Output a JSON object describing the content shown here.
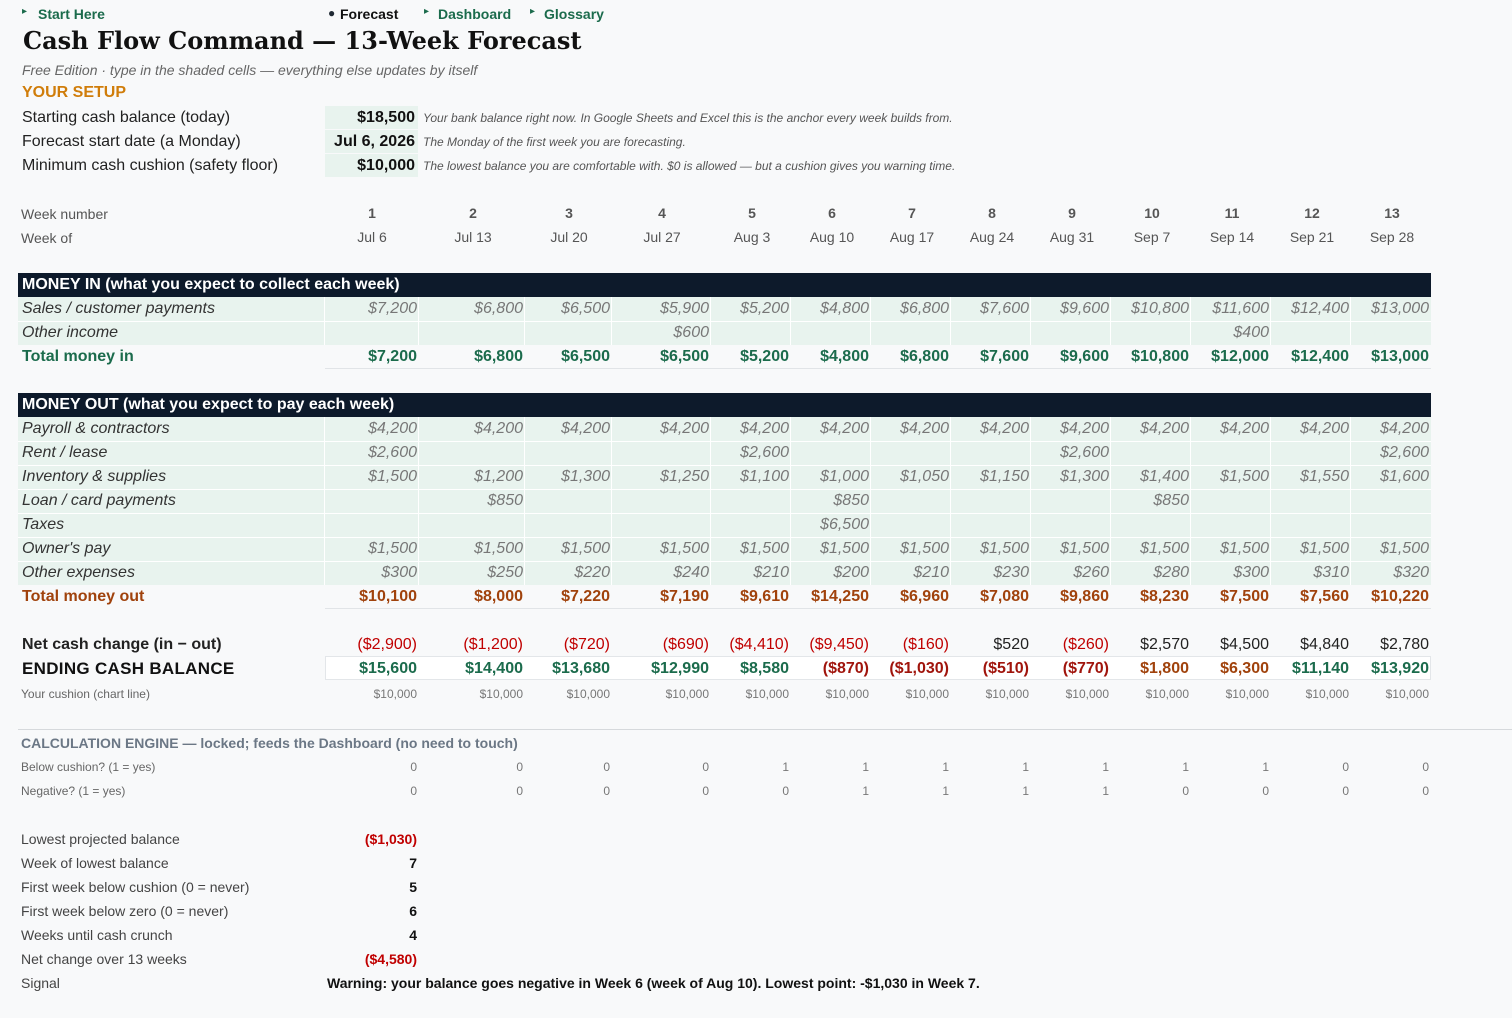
{
  "nav": {
    "start": "Start Here",
    "forecast": "Forecast",
    "dashboard": "Dashboard",
    "glossary": "Glossary"
  },
  "title": "Cash Flow Command — 13-Week Forecast",
  "subtitle": "Free Edition · type in the shaded cells — everything else updates by itself",
  "setup": {
    "heading": "YOUR SETUP",
    "rows": [
      {
        "label": "Starting cash balance (today)",
        "value": "$18,500",
        "note": "Your bank balance right now. In Google Sheets and Excel this is the anchor every week builds from."
      },
      {
        "label": "Forecast start date (a Monday)",
        "value": "Jul 6, 2026",
        "note": "The Monday of the first week you are forecasting."
      },
      {
        "label": "Minimum cash cushion (safety floor)",
        "value": "$10,000",
        "note": "The lowest balance you are comfortable with. $0 is allowed — but a cushion gives you warning time."
      }
    ]
  },
  "weeks": {
    "number_label": "Week number",
    "of_label": "Week of",
    "numbers": [
      "1",
      "2",
      "3",
      "4",
      "5",
      "6",
      "7",
      "8",
      "9",
      "10",
      "11",
      "12",
      "13"
    ],
    "dates": [
      "Jul 6",
      "Jul 13",
      "Jul 20",
      "Jul 27",
      "Aug 3",
      "Aug 10",
      "Aug 17",
      "Aug 24",
      "Aug 31",
      "Sep 7",
      "Sep 14",
      "Sep 21",
      "Sep 28"
    ]
  },
  "money_in": {
    "header": "MONEY IN  (what you expect to collect each week)",
    "rows": [
      {
        "label": "Sales / customer payments",
        "values": [
          "$7,200",
          "$6,800",
          "$6,500",
          "$5,900",
          "$5,200",
          "$4,800",
          "$6,800",
          "$7,600",
          "$9,600",
          "$10,800",
          "$11,600",
          "$12,400",
          "$13,000"
        ]
      },
      {
        "label": "Other income",
        "values": [
          "",
          "",
          "",
          "$600",
          "",
          "",
          "",
          "",
          "",
          "",
          "$400",
          "",
          ""
        ]
      }
    ],
    "total": {
      "label": "Total money in",
      "values": [
        "$7,200",
        "$6,800",
        "$6,500",
        "$6,500",
        "$5,200",
        "$4,800",
        "$6,800",
        "$7,600",
        "$9,600",
        "$10,800",
        "$12,000",
        "$12,400",
        "$13,000"
      ]
    }
  },
  "money_out": {
    "header": "MONEY OUT  (what you expect to pay each week)",
    "rows": [
      {
        "label": "Payroll & contractors",
        "values": [
          "$4,200",
          "$4,200",
          "$4,200",
          "$4,200",
          "$4,200",
          "$4,200",
          "$4,200",
          "$4,200",
          "$4,200",
          "$4,200",
          "$4,200",
          "$4,200",
          "$4,200"
        ]
      },
      {
        "label": "Rent / lease",
        "values": [
          "$2,600",
          "",
          "",
          "",
          "$2,600",
          "",
          "",
          "",
          "$2,600",
          "",
          "",
          "",
          "$2,600"
        ]
      },
      {
        "label": "Inventory & supplies",
        "values": [
          "$1,500",
          "$1,200",
          "$1,300",
          "$1,250",
          "$1,100",
          "$1,000",
          "$1,050",
          "$1,150",
          "$1,300",
          "$1,400",
          "$1,500",
          "$1,550",
          "$1,600"
        ]
      },
      {
        "label": "Loan / card payments",
        "values": [
          "",
          "$850",
          "",
          "",
          "",
          "$850",
          "",
          "",
          "",
          "$850",
          "",
          "",
          ""
        ]
      },
      {
        "label": "Taxes",
        "values": [
          "",
          "",
          "",
          "",
          "",
          "$6,500",
          "",
          "",
          "",
          "",
          "",
          "",
          ""
        ]
      },
      {
        "label": "Owner's pay",
        "values": [
          "$1,500",
          "$1,500",
          "$1,500",
          "$1,500",
          "$1,500",
          "$1,500",
          "$1,500",
          "$1,500",
          "$1,500",
          "$1,500",
          "$1,500",
          "$1,500",
          "$1,500"
        ]
      },
      {
        "label": "Other expenses",
        "values": [
          "$300",
          "$250",
          "$220",
          "$240",
          "$210",
          "$200",
          "$210",
          "$230",
          "$260",
          "$280",
          "$300",
          "$310",
          "$320"
        ]
      }
    ],
    "total": {
      "label": "Total money out",
      "values": [
        "$10,100",
        "$8,000",
        "$7,220",
        "$7,190",
        "$9,610",
        "$14,250",
        "$6,960",
        "$7,080",
        "$9,860",
        "$8,230",
        "$7,500",
        "$7,560",
        "$10,220"
      ]
    }
  },
  "net": {
    "label": "Net cash change (in − out)",
    "values": [
      "($2,900)",
      "($1,200)",
      "($720)",
      "($690)",
      "($4,410)",
      "($9,450)",
      "($160)",
      "$520",
      "($260)",
      "$2,570",
      "$4,500",
      "$4,840",
      "$2,780"
    ]
  },
  "ending": {
    "label": "ENDING CASH BALANCE",
    "values": [
      "$15,600",
      "$14,400",
      "$13,680",
      "$12,990",
      "$8,580",
      "($870)",
      "($1,030)",
      "($510)",
      "($770)",
      "$1,800",
      "$6,300",
      "$11,140",
      "$13,920"
    ]
  },
  "cushion": {
    "label": "Your cushion (chart line)",
    "values": [
      "$10,000",
      "$10,000",
      "$10,000",
      "$10,000",
      "$10,000",
      "$10,000",
      "$10,000",
      "$10,000",
      "$10,000",
      "$10,000",
      "$10,000",
      "$10,000",
      "$10,000"
    ]
  },
  "engine": {
    "heading": "CALCULATION ENGINE — locked; feeds the Dashboard (no need to touch)",
    "rows": [
      {
        "label": "Below cushion? (1 = yes)",
        "values": [
          "0",
          "0",
          "0",
          "0",
          "1",
          "1",
          "1",
          "1",
          "1",
          "1",
          "1",
          "0",
          "0"
        ]
      },
      {
        "label": "Negative? (1 = yes)",
        "values": [
          "0",
          "0",
          "0",
          "0",
          "0",
          "1",
          "1",
          "1",
          "1",
          "0",
          "0",
          "0",
          "0"
        ]
      }
    ]
  },
  "summary": [
    {
      "label": "Lowest projected balance",
      "value": "($1,030)"
    },
    {
      "label": "Week of lowest balance",
      "value": "7"
    },
    {
      "label": "First week below cushion (0 = never)",
      "value": "5"
    },
    {
      "label": "First week below zero (0 = never)",
      "value": "6"
    },
    {
      "label": "Weeks until cash crunch",
      "value": "4"
    },
    {
      "label": "Net change over 13 weeks",
      "value": "($4,580)"
    }
  ],
  "signal": {
    "label": "Signal",
    "text": "Warning: your balance goes negative in Week 6 (week of Aug 10). Lowest point: -$1,030 in Week 7."
  },
  "colors": {
    "accent_green": "#1b6b4c",
    "accent_orange": "#d07d0a",
    "header_bar": "#0d1a2b",
    "input_shade": "#e8f3ee",
    "negative": "#c00000"
  }
}
